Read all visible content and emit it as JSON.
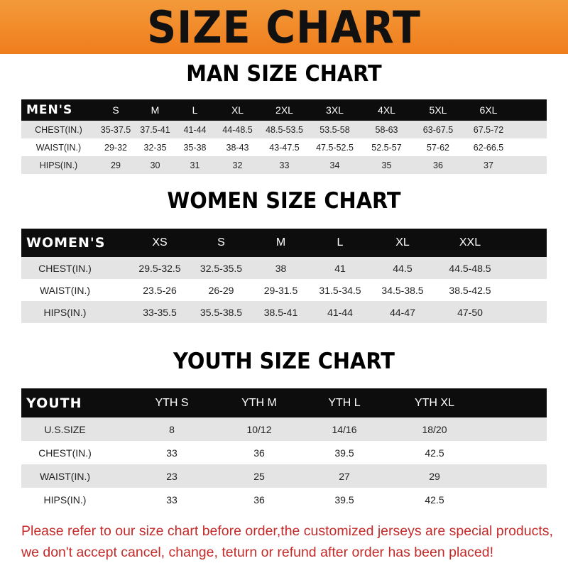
{
  "banner_title": "SIZE CHART",
  "colors": {
    "banner": "#f07d1c",
    "header_row": "#0d0d0d",
    "stripe": "#e4e4e4",
    "notice": "#c42a2a"
  },
  "men": {
    "title": "MAN SIZE CHART",
    "header": [
      "MEN'S",
      "S",
      "M",
      "L",
      "XL",
      "2XL",
      "3XL",
      "4XL",
      "5XL",
      "6XL"
    ],
    "rows": [
      [
        "CHEST(IN.)",
        "35-37.5",
        "37.5-41",
        "41-44",
        "44-48.5",
        "48.5-53.5",
        "53.5-58",
        "58-63",
        "63-67.5",
        "67.5-72"
      ],
      [
        "WAIST(IN.)",
        "29-32",
        "32-35",
        "35-38",
        "38-43",
        "43-47.5",
        "47.5-52.5",
        "52.5-57",
        "57-62",
        "62-66.5"
      ],
      [
        "HIPS(IN.)",
        "29",
        "30",
        "31",
        "32",
        "33",
        "34",
        "35",
        "36",
        "37"
      ]
    ]
  },
  "women": {
    "title": "WOMEN SIZE CHART",
    "header": [
      "WOMEN'S",
      "XS",
      "S",
      "M",
      "L",
      "XL",
      "XXL"
    ],
    "rows": [
      [
        "CHEST(IN.)",
        "29.5-32.5",
        "32.5-35.5",
        "38",
        "41",
        "44.5",
        "44.5-48.5"
      ],
      [
        "WAIST(IN.)",
        "23.5-26",
        "26-29",
        "29-31.5",
        "31.5-34.5",
        "34.5-38.5",
        "38.5-42.5"
      ],
      [
        "HIPS(IN.)",
        "33-35.5",
        "35.5-38.5",
        "38.5-41",
        "41-44",
        "44-47",
        "47-50"
      ]
    ]
  },
  "youth": {
    "title": "YOUTH SIZE CHART",
    "header": [
      "YOUTH",
      "YTH S",
      "YTH M",
      "YTH L",
      "YTH XL"
    ],
    "rows": [
      [
        "U.S.SIZE",
        "8",
        "10/12",
        "14/16",
        "18/20"
      ],
      [
        "CHEST(IN.)",
        "33",
        "36",
        "39.5",
        "42.5"
      ],
      [
        "WAIST(IN.)",
        "23",
        "25",
        "27",
        "29"
      ],
      [
        "HIPS(IN.)",
        "33",
        "36",
        "39.5",
        "42.5"
      ]
    ]
  },
  "notice": {
    "line1": "Please refer to our size chart before order,the customized jerseys are special products,",
    "line2": "we don't accept cancel, change, teturn or refund after order has been placed!"
  }
}
